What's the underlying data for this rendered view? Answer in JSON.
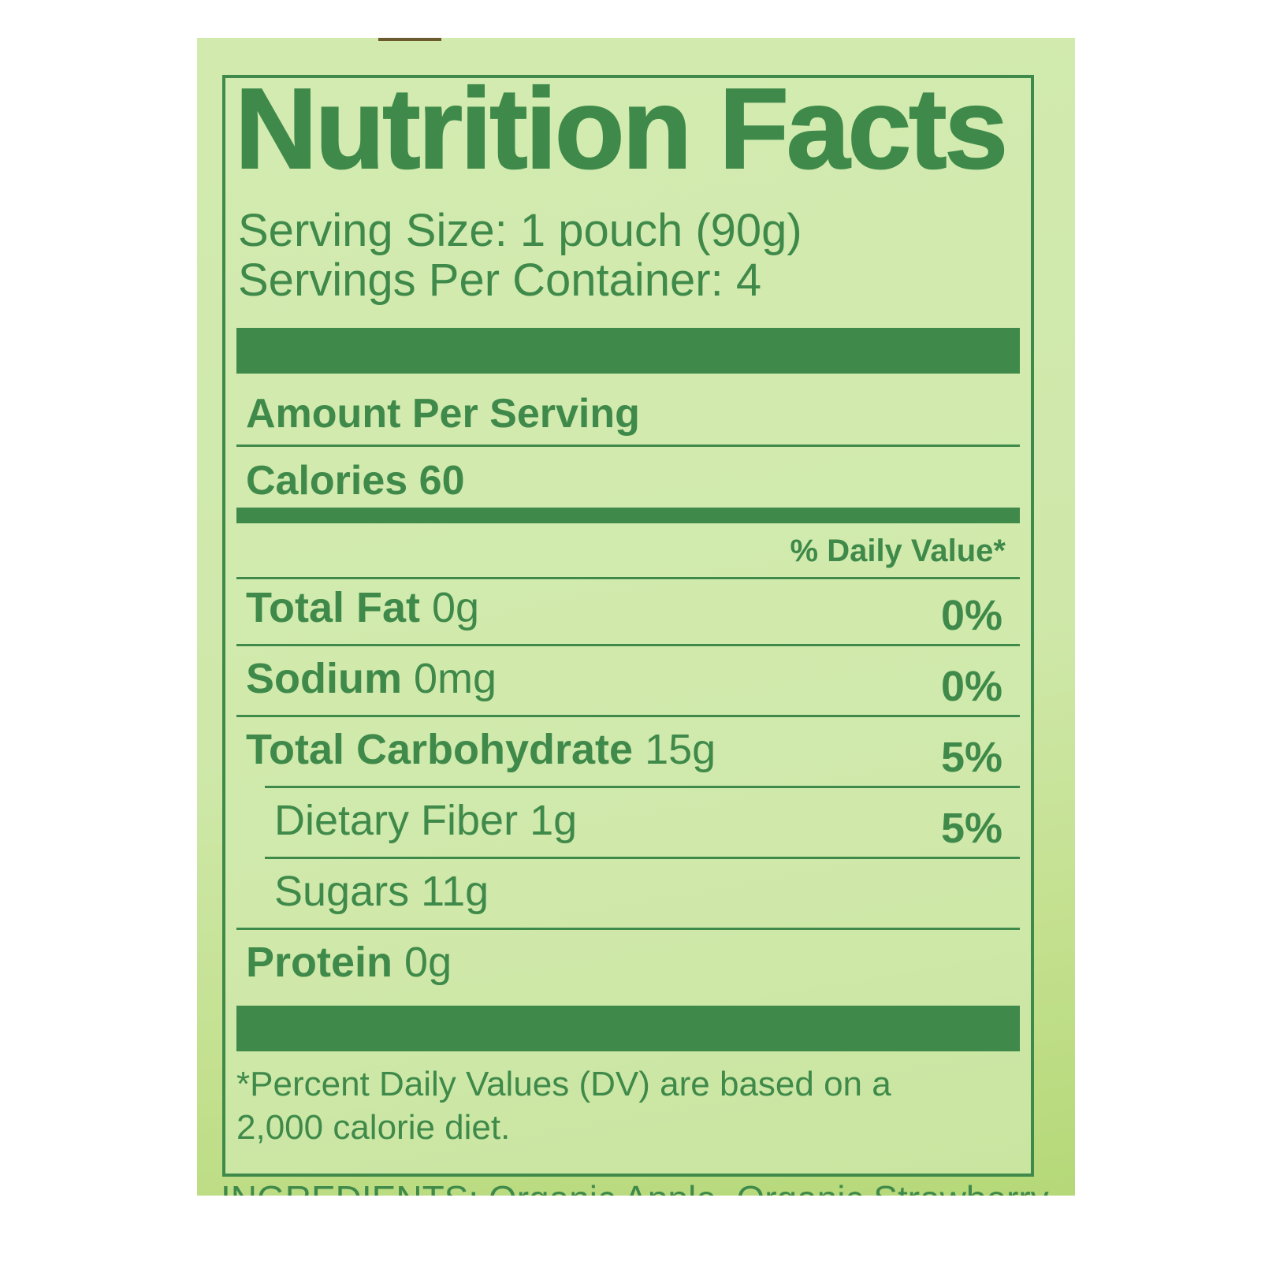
{
  "label": {
    "title": "Nutrition Facts",
    "serving_size": "Serving Size: 1 pouch (90g)",
    "servings_per_container": "Servings Per Container: 4",
    "amount_per_serving": "Amount Per Serving",
    "calories_label": "Calories",
    "calories_value": "60",
    "daily_value_header": "% Daily Value*",
    "rows": [
      {
        "name": "Total Fat",
        "amount": "0g",
        "dv": "0%"
      },
      {
        "name": "Sodium",
        "amount": "0mg",
        "dv": "0%"
      },
      {
        "name": "Total Carbohydrate",
        "amount": "15g",
        "dv": "5%"
      },
      {
        "name": "Dietary Fiber",
        "amount": "1g",
        "dv": "5%"
      },
      {
        "name": "Sugars",
        "amount": "11g",
        "dv": ""
      },
      {
        "name": "Protein",
        "amount": "0g",
        "dv": ""
      }
    ],
    "footnote_line1": "*Percent Daily Values (DV) are based on a",
    "footnote_line2": "2,000 calorie diet.",
    "ingredients": "INGREDIENTS: Organic Apple, Organic Strawberry"
  },
  "colors": {
    "ink": "#3f8a4a",
    "background": "#d0e9ab"
  }
}
